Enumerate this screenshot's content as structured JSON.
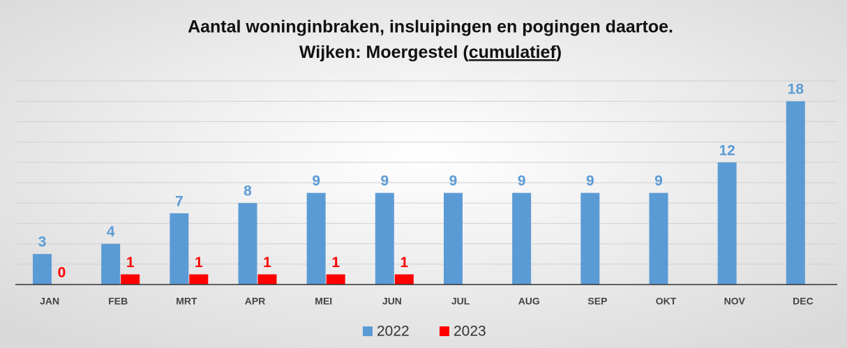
{
  "chart_data": {
    "type": "bar",
    "title": [
      "Aantal woninginbraken, insluipingen en pogingen daartoe.",
      [
        "Wijken: Moergestel (",
        "cumulatief",
        ")"
      ]
    ],
    "categories": [
      "JAN",
      "FEB",
      "MRT",
      "APR",
      "MEI",
      "JUN",
      "JUL",
      "AUG",
      "SEP",
      "OKT",
      "NOV",
      "DEC"
    ],
    "series": [
      {
        "name": "2022",
        "color": "#5b9bd5",
        "values": [
          3,
          4,
          7,
          8,
          9,
          9,
          9,
          9,
          9,
          9,
          12,
          18
        ]
      },
      {
        "name": "2023",
        "color": "#ff0000",
        "values": [
          0,
          1,
          1,
          1,
          1,
          1,
          null,
          null,
          null,
          null,
          null,
          null
        ]
      }
    ],
    "ylim": [
      0,
      20
    ],
    "yticks": [
      0,
      2,
      4,
      6,
      8,
      10,
      12,
      14,
      16,
      18,
      20
    ],
    "grid": true,
    "legend": "bottom"
  }
}
